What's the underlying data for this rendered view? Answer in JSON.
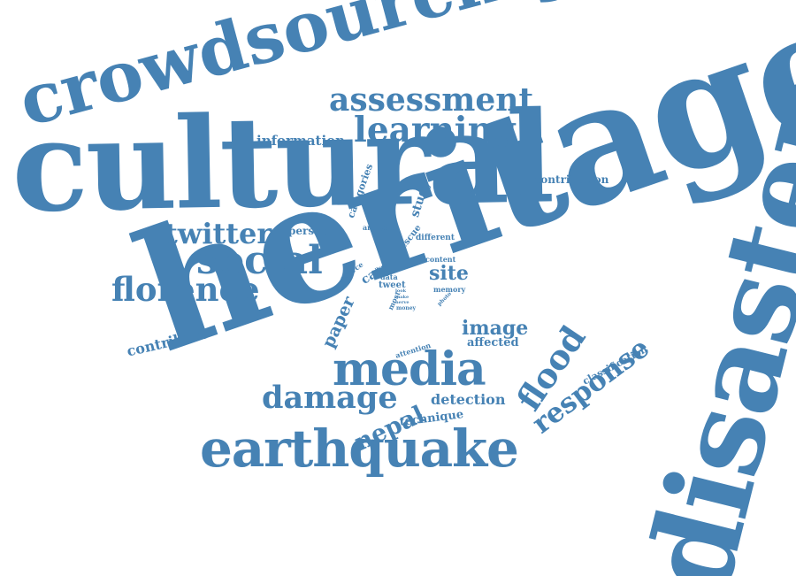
{
  "accent_color": "#4682b4",
  "background_color": "#ffffff",
  "words": {
    "heritage": "heritage",
    "cultural": "cultural",
    "disaster": "disaster",
    "crowdsourcing": "crowdsourcing",
    "earthquake": "earthquake",
    "media": "media",
    "assessment": "assessment",
    "learning": "learning",
    "social": "social",
    "florence": "florence",
    "twitter": "twitter",
    "damage": "damage",
    "flood": "flood",
    "response": "response",
    "nepal": "nepal",
    "image": "image",
    "information": "information",
    "contribute": "contribute",
    "contribution": "contribution",
    "detection": "detection",
    "technique": "technique",
    "paper": "paper",
    "site": "site",
    "affected": "affected",
    "classification": "classification",
    "study": "study",
    "categories": "categories",
    "person": "person",
    "case": "case",
    "rescue": "rescue",
    "different": "different",
    "analysis": "analysis",
    "source": "source",
    "data": "data",
    "tweet": "tweet",
    "most": "most",
    "content": "content",
    "memory": "memory",
    "attention": "attention",
    "money": "money",
    "photo": "photo",
    "look": "look",
    "make": "make",
    "nerve": "nerve",
    "album": "album"
  }
}
